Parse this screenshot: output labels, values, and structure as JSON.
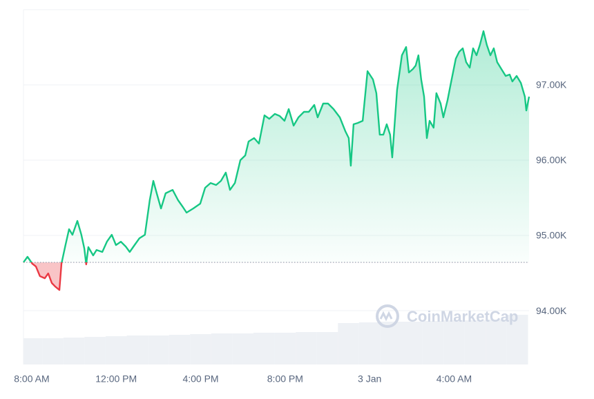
{
  "chart_data": {
    "type": "line",
    "watermark": "CoinMarketCap",
    "up_color": "#16c784",
    "down_color": "#ea3943",
    "grid": true,
    "xlim": [
      7.61,
      31.55
    ],
    "xticks": [
      {
        "value": 8,
        "label": "8:00 AM"
      },
      {
        "value": 12,
        "label": "12:00 PM"
      },
      {
        "value": 16,
        "label": "4:00 PM"
      },
      {
        "value": 20,
        "label": "8:00 PM"
      },
      {
        "value": 24,
        "label": "3 Jan"
      },
      {
        "value": 28,
        "label": "4:00 AM"
      }
    ],
    "ylim": [
      93285,
      98000
    ],
    "yticks": [
      {
        "value": 94000,
        "label": "94.00K"
      },
      {
        "value": 95000,
        "label": "95.00K"
      },
      {
        "value": 96000,
        "label": "96.00K"
      },
      {
        "value": 97000,
        "label": "97.00K"
      }
    ],
    "x": [
      7.61,
      7.8,
      8.03,
      8.2,
      8.39,
      8.62,
      8.78,
      8.95,
      9.11,
      9.31,
      9.41,
      9.6,
      9.77,
      9.93,
      10.16,
      10.35,
      10.49,
      10.58,
      10.68,
      10.91,
      11.07,
      11.34,
      11.56,
      11.79,
      11.99,
      12.22,
      12.45,
      12.64,
      12.87,
      13.1,
      13.36,
      13.59,
      13.76,
      13.92,
      14.12,
      14.34,
      14.67,
      14.93,
      15.16,
      15.33,
      15.65,
      15.98,
      16.21,
      16.47,
      16.73,
      16.96,
      17.19,
      17.39,
      17.62,
      17.88,
      18.11,
      18.27,
      18.53,
      18.76,
      19.02,
      19.25,
      19.51,
      19.74,
      19.97,
      20.17,
      20.4,
      20.63,
      20.89,
      21.12,
      21.38,
      21.54,
      21.8,
      22.03,
      22.29,
      22.59,
      22.85,
      23.01,
      23.11,
      23.24,
      23.44,
      23.67,
      23.9,
      24.16,
      24.32,
      24.48,
      24.65,
      24.81,
      24.97,
      25.07,
      25.3,
      25.53,
      25.73,
      25.86,
      26.05,
      26.18,
      26.31,
      26.44,
      26.58,
      26.71,
      26.84,
      27.03,
      27.16,
      27.36,
      27.49,
      27.69,
      27.82,
      28.08,
      28.24,
      28.41,
      28.57,
      28.74,
      28.9,
      29.06,
      29.22,
      29.39,
      29.55,
      29.72,
      29.88,
      30.04,
      30.24,
      30.44,
      30.63,
      30.76,
      30.96,
      31.16,
      31.35,
      31.42,
      31.55
    ],
    "values": [
      94642,
      94716,
      94624,
      94587,
      94459,
      94431,
      94495,
      94367,
      94321,
      94275,
      94624,
      94872,
      95083,
      95009,
      95193,
      95009,
      94826,
      94615,
      94844,
      94734,
      94807,
      94780,
      94917,
      95009,
      94872,
      94917,
      94853,
      94780,
      94872,
      94963,
      95009,
      95468,
      95725,
      95560,
      95358,
      95560,
      95605,
      95468,
      95376,
      95303,
      95358,
      95422,
      95633,
      95697,
      95670,
      95725,
      95835,
      95605,
      95697,
      96000,
      96064,
      96248,
      96294,
      96220,
      96596,
      96550,
      96615,
      96587,
      96523,
      96679,
      96459,
      96569,
      96642,
      96642,
      96734,
      96569,
      96752,
      96752,
      96679,
      96569,
      96385,
      96294,
      95927,
      96477,
      96495,
      96523,
      97183,
      97073,
      96890,
      96339,
      96339,
      96477,
      96339,
      96037,
      96936,
      97394,
      97504,
      97165,
      97211,
      97257,
      97394,
      97073,
      96844,
      96294,
      96523,
      96431,
      96890,
      96752,
      96569,
      96798,
      96982,
      97349,
      97440,
      97486,
      97303,
      97229,
      97486,
      97394,
      97532,
      97715,
      97532,
      97394,
      97486,
      97303,
      97211,
      97119,
      97138,
      97046,
      97119,
      97027,
      96844,
      96660,
      96844
    ],
    "volume": {
      "color": "#eef1f5",
      "x": [
        8,
        9,
        10,
        11,
        12,
        13,
        14,
        15,
        16,
        17,
        18,
        19,
        20,
        21,
        22,
        23,
        24,
        25,
        26,
        27,
        28,
        29,
        30,
        31
      ],
      "values": [
        38,
        38,
        39,
        40,
        41,
        42,
        42,
        43,
        44,
        45,
        45,
        46,
        46,
        47,
        47,
        60,
        61,
        62,
        62,
        63,
        64,
        64,
        65,
        72
      ]
    }
  }
}
